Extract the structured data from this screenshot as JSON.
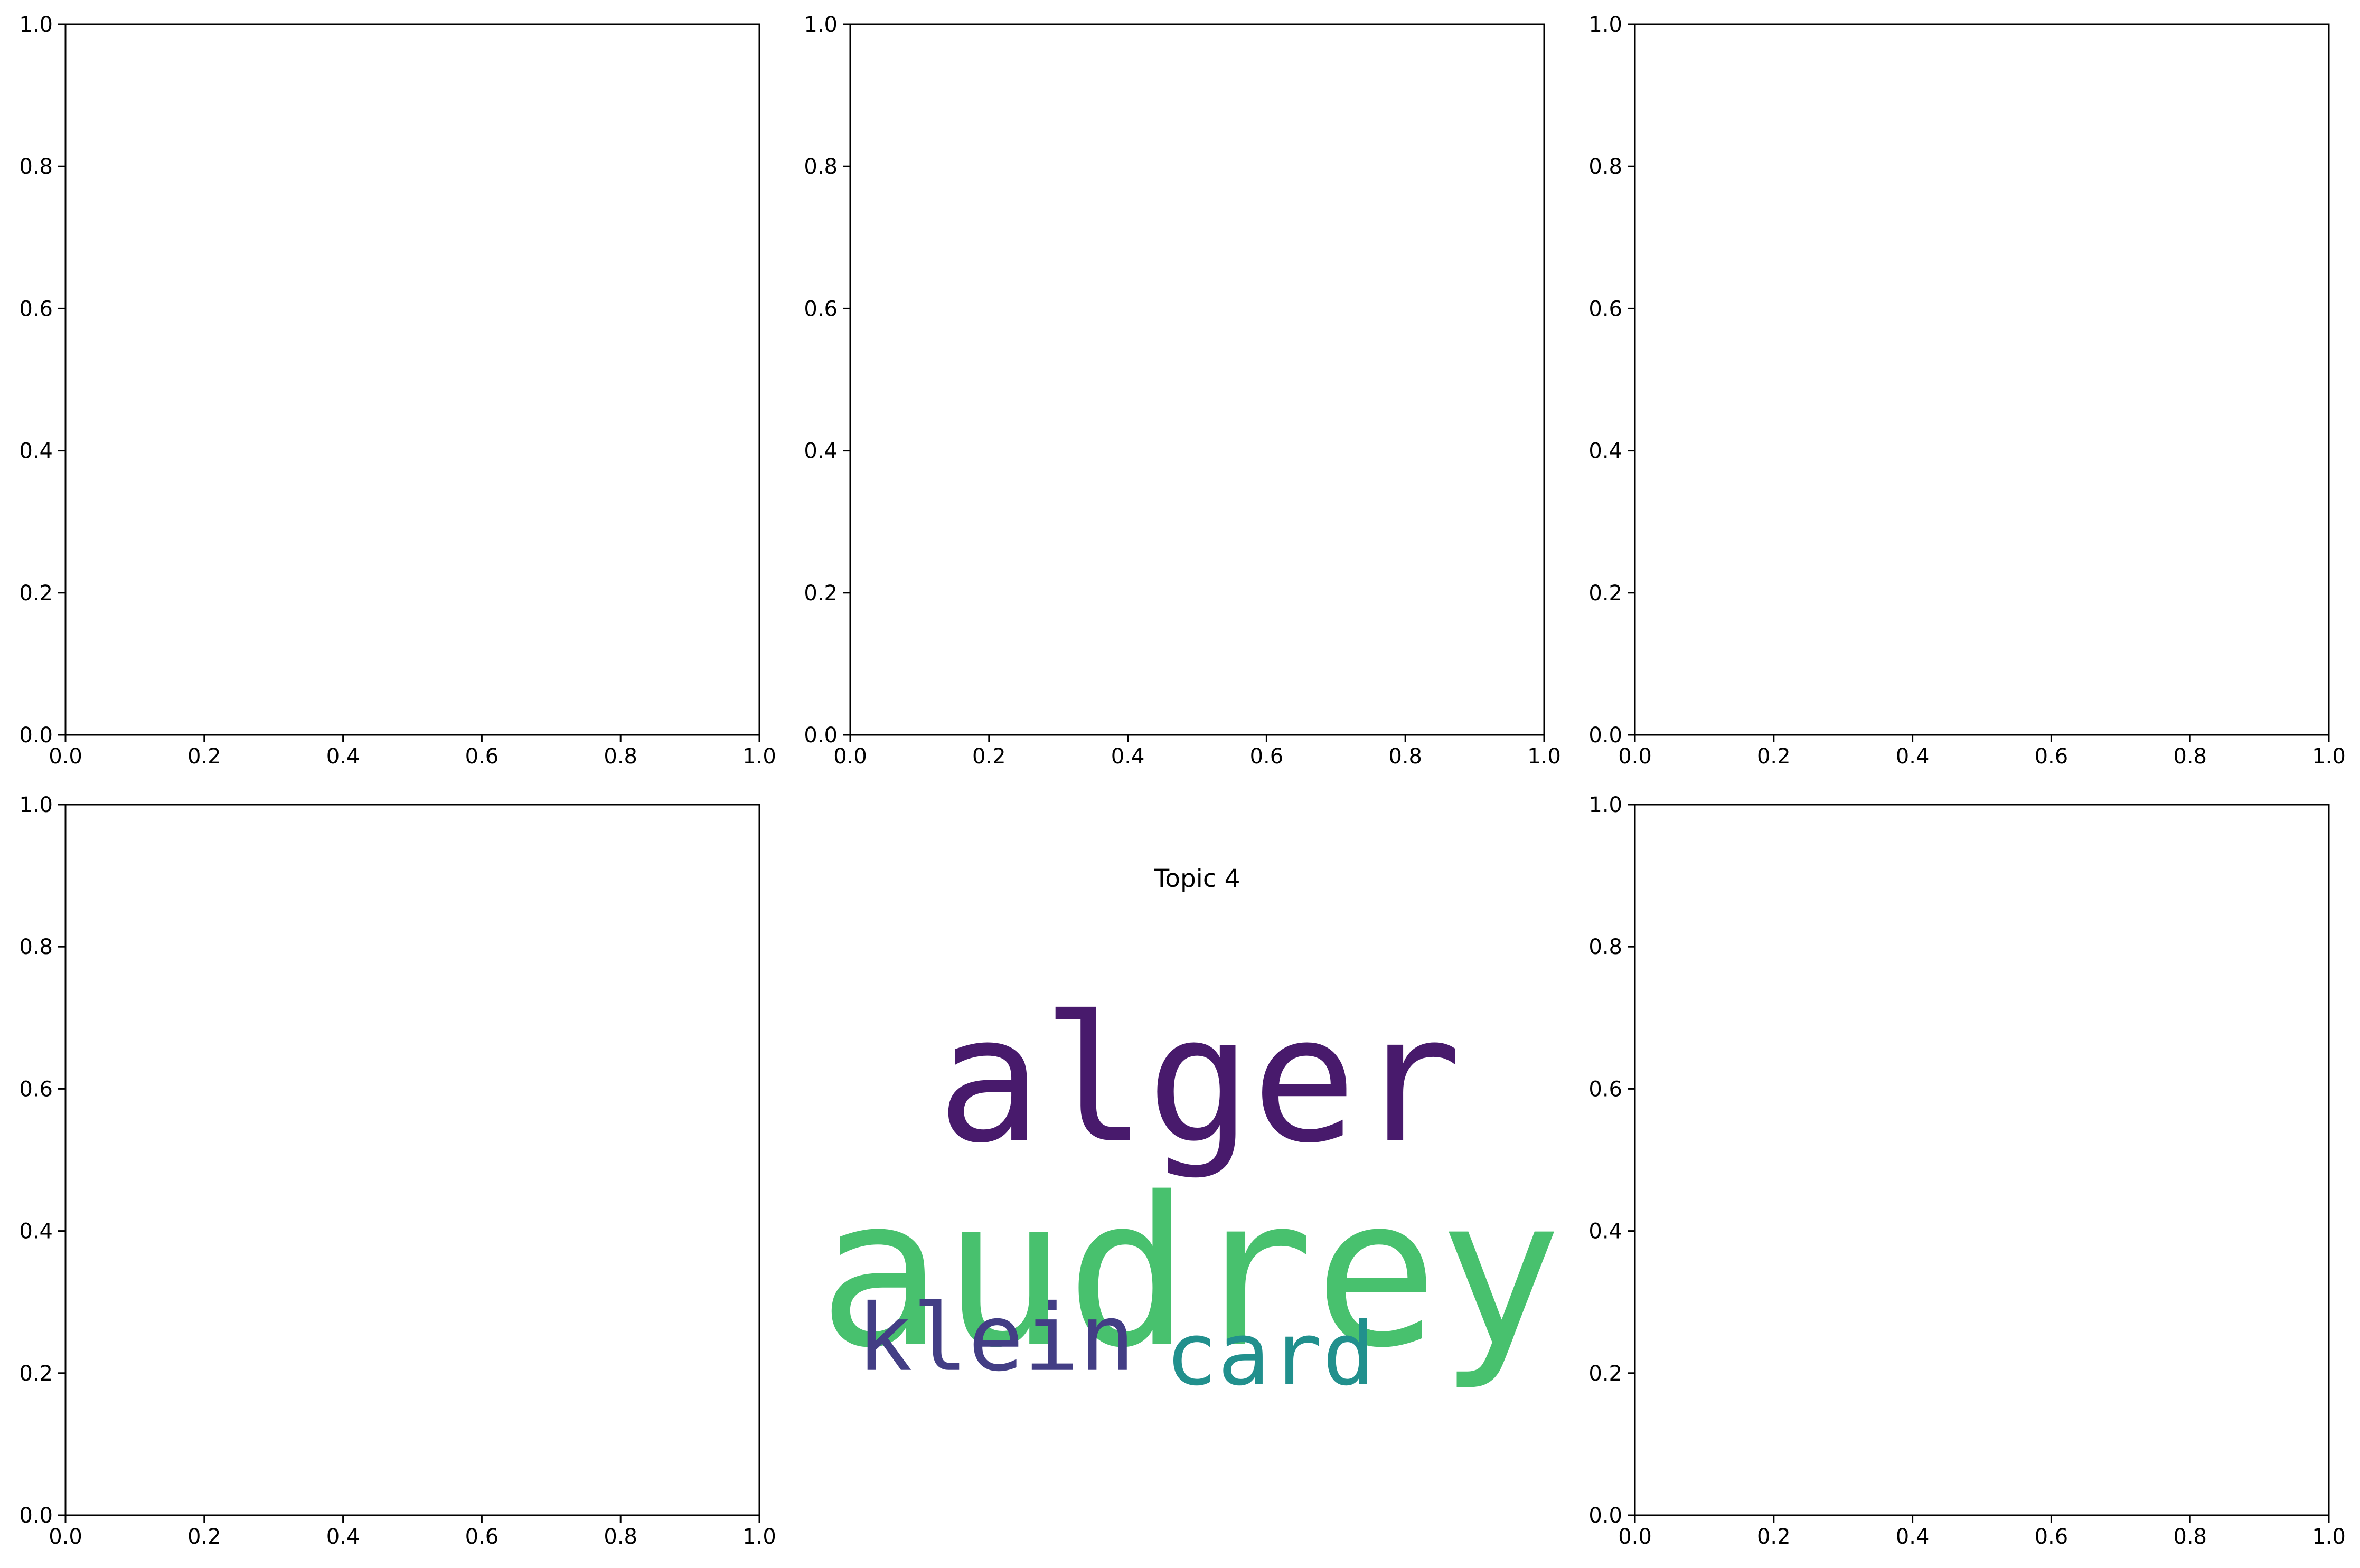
{
  "chart_data": [
    {
      "type": "scatter",
      "panel": 1,
      "series": [],
      "xlim": [
        0.0,
        1.0
      ],
      "ylim": [
        0.0,
        1.0
      ],
      "x_ticks": [
        "0.0",
        "0.2",
        "0.4",
        "0.6",
        "0.8",
        "1.0"
      ],
      "y_ticks": [
        "0.0",
        "0.2",
        "0.4",
        "0.6",
        "0.8",
        "1.0"
      ],
      "grid": false
    },
    {
      "type": "scatter",
      "panel": 2,
      "series": [],
      "xlim": [
        0.0,
        1.0
      ],
      "ylim": [
        0.0,
        1.0
      ],
      "x_ticks": [
        "0.0",
        "0.2",
        "0.4",
        "0.6",
        "0.8",
        "1.0"
      ],
      "y_ticks": [
        "0.0",
        "0.2",
        "0.4",
        "0.6",
        "0.8",
        "1.0"
      ],
      "grid": false
    },
    {
      "type": "scatter",
      "panel": 3,
      "series": [],
      "xlim": [
        0.0,
        1.0
      ],
      "ylim": [
        0.0,
        1.0
      ],
      "x_ticks": [
        "0.0",
        "0.2",
        "0.4",
        "0.6",
        "0.8",
        "1.0"
      ],
      "y_ticks": [
        "0.0",
        "0.2",
        "0.4",
        "0.6",
        "0.8",
        "1.0"
      ],
      "grid": false
    },
    {
      "type": "scatter",
      "panel": 4,
      "series": [],
      "xlim": [
        0.0,
        1.0
      ],
      "ylim": [
        0.0,
        1.0
      ],
      "x_ticks": [
        "0.0",
        "0.2",
        "0.4",
        "0.6",
        "0.8",
        "1.0"
      ],
      "y_ticks": [
        "0.0",
        "0.2",
        "0.4",
        "0.6",
        "0.8",
        "1.0"
      ],
      "grid": false
    },
    {
      "type": "wordcloud",
      "panel": 5,
      "title": "Topic 4",
      "axes_visible": false,
      "words": [
        {
          "text": "alger",
          "color": "#481a6c"
        },
        {
          "text": "audrey",
          "color": "#48c16e"
        },
        {
          "text": "klein",
          "color": "#433e85"
        },
        {
          "text": "card",
          "color": "#21908d"
        }
      ]
    },
    {
      "type": "scatter",
      "panel": 6,
      "series": [],
      "xlim": [
        0.0,
        1.0
      ],
      "ylim": [
        0.0,
        1.0
      ],
      "x_ticks": [
        "0.0",
        "0.2",
        "0.4",
        "0.6",
        "0.8",
        "1.0"
      ],
      "y_ticks": [
        "0.0",
        "0.2",
        "0.4",
        "0.6",
        "0.8",
        "1.0"
      ],
      "grid": false
    }
  ]
}
